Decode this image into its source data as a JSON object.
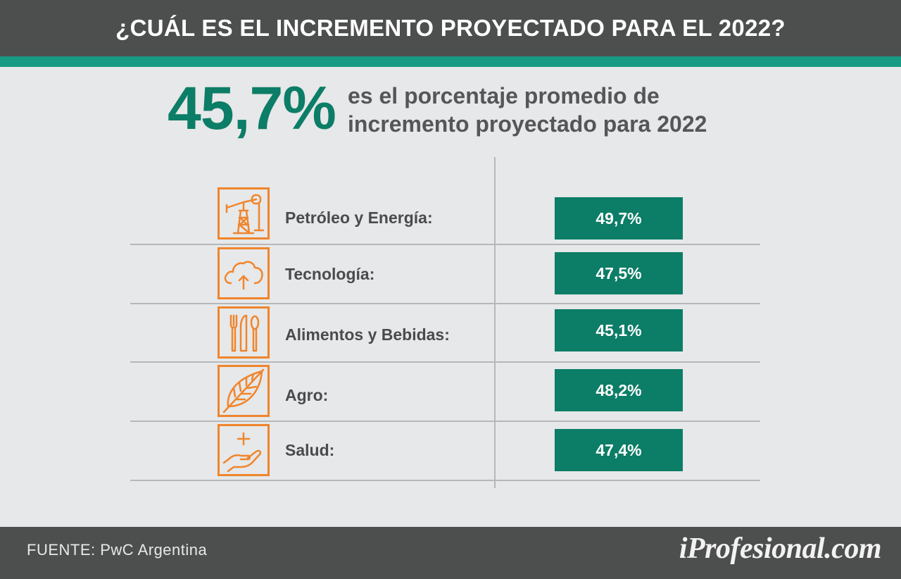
{
  "header": {
    "title": "¿CUÁL ES EL INCREMENTO PROYECTADO PARA EL 2022?"
  },
  "headline": {
    "percentage": "45,7%",
    "description_line1": "es el porcentaje promedio de",
    "description_line2": "incremento proyectado para 2022"
  },
  "rows": [
    {
      "icon": "oil-pump-icon",
      "label": "Petróleo y Energía:",
      "value": "49,7%"
    },
    {
      "icon": "cloud-upload-icon",
      "label": "Tecnología:",
      "value": "47,5%"
    },
    {
      "icon": "cutlery-icon",
      "label": "Alimentos y Bebidas:",
      "value": "45,1%"
    },
    {
      "icon": "leaf-icon",
      "label": "Agro:",
      "value": "48,2%"
    },
    {
      "icon": "health-hand-icon",
      "label": "Salud:",
      "value": "47,4%"
    }
  ],
  "footer": {
    "source": "FUENTE: PwC Argentina",
    "logo": "iProfesional.com"
  },
  "colors": {
    "accent_green": "#0c7d66",
    "teal_strip": "#199a84",
    "icon_orange": "#f0852c",
    "bar_dark": "#4d4e4e",
    "background": "#e6e8e9"
  }
}
